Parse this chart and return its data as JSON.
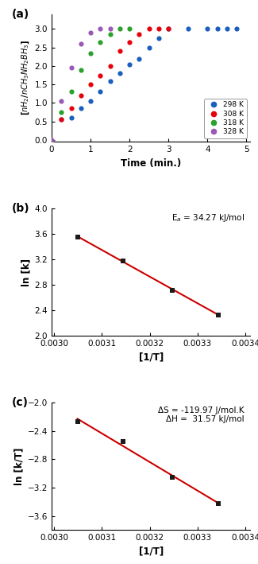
{
  "panel_a": {
    "series": {
      "298K": {
        "color": "#1a5ebe",
        "time": [
          0.25,
          0.5,
          0.75,
          1.0,
          1.25,
          1.5,
          1.75,
          2.0,
          2.25,
          2.5,
          2.75,
          3.0,
          3.5,
          4.0,
          4.25,
          4.5,
          4.75
        ],
        "y": [
          0.55,
          0.6,
          0.85,
          1.05,
          1.3,
          1.6,
          1.8,
          2.05,
          2.2,
          2.5,
          2.75,
          3.0,
          3.0,
          3.0,
          3.0,
          3.0,
          3.0
        ]
      },
      "308K": {
        "color": "#e8000d",
        "time": [
          0.25,
          0.5,
          0.75,
          1.0,
          1.25,
          1.5,
          1.75,
          2.0,
          2.25,
          2.5,
          2.75,
          3.0
        ],
        "y": [
          0.55,
          0.85,
          1.2,
          1.5,
          1.75,
          2.0,
          2.4,
          2.65,
          2.85,
          3.0,
          3.0,
          3.0
        ]
      },
      "318K": {
        "color": "#2ca02c",
        "time": [
          0.25,
          0.5,
          0.75,
          1.0,
          1.25,
          1.5,
          1.75,
          2.0
        ],
        "y": [
          0.75,
          1.3,
          1.9,
          2.35,
          2.65,
          2.85,
          3.0,
          3.0
        ]
      },
      "328K": {
        "color": "#9b59b6",
        "time": [
          0.0,
          0.25,
          0.5,
          0.75,
          1.0,
          1.25,
          1.5
        ],
        "y": [
          0.0,
          1.05,
          1.95,
          2.6,
          2.9,
          3.0,
          3.0
        ]
      }
    },
    "xlabel": "Time (min.)",
    "ylabel": "[$nH_2$/$nCH_3NH_2BH_3$]",
    "xlim": [
      0,
      5.1
    ],
    "ylim": [
      -0.05,
      3.4
    ],
    "yticks": [
      0.0,
      0.5,
      1.0,
      1.5,
      2.0,
      2.5,
      3.0
    ],
    "xticks": [
      0,
      1,
      2,
      3,
      4,
      5
    ],
    "legend_labels": [
      "298 K",
      "308 K",
      "318 K",
      "328 K"
    ],
    "legend_colors": [
      "#1a5ebe",
      "#e8000d",
      "#2ca02c",
      "#9b59b6"
    ]
  },
  "panel_b": {
    "x": [
      0.003049,
      0.003145,
      0.003247,
      0.003344
    ],
    "y": [
      3.55,
      3.18,
      2.72,
      2.33
    ],
    "fit_color": "#cc0000",
    "marker_color": "#1a1a1a",
    "xlabel": "[1/T]",
    "ylabel": "ln [k]",
    "xlim": [
      0.002995,
      0.00341
    ],
    "ylim": [
      2.0,
      4.0
    ],
    "yticks": [
      2.0,
      2.4,
      2.8,
      3.2,
      3.6,
      4.0
    ],
    "xticks": [
      0.003,
      0.0031,
      0.0032,
      0.0033,
      0.0034
    ],
    "xtick_labels": [
      "0.0030",
      "0.0031",
      "0.0032",
      "0.0033",
      "0.0034"
    ],
    "annotation": "E$_a$ = 34.27 kJ/mol"
  },
  "panel_c": {
    "x": [
      0.003049,
      0.003145,
      0.003247,
      0.003344
    ],
    "y": [
      -2.27,
      -2.55,
      -3.05,
      -3.43
    ],
    "fit_color": "#cc0000",
    "marker_color": "#1a1a1a",
    "xlabel": "[1/T]",
    "ylabel": "ln [k/T]",
    "xlim": [
      0.002995,
      0.00341
    ],
    "ylim": [
      -3.8,
      -2.0
    ],
    "yticks": [
      -3.6,
      -3.2,
      -2.8,
      -2.4,
      -2.0
    ],
    "xticks": [
      0.003,
      0.0031,
      0.0032,
      0.0033,
      0.0034
    ],
    "xtick_labels": [
      "0.0030",
      "0.0031",
      "0.0032",
      "0.0033",
      "0.0034"
    ],
    "annotation_line1": "ΔS = -119.97 J/mol.K",
    "annotation_line2": "ΔH =  31.57 kJ/mol"
  },
  "figure_bg": "#ffffff",
  "panel_bg": "#ffffff"
}
